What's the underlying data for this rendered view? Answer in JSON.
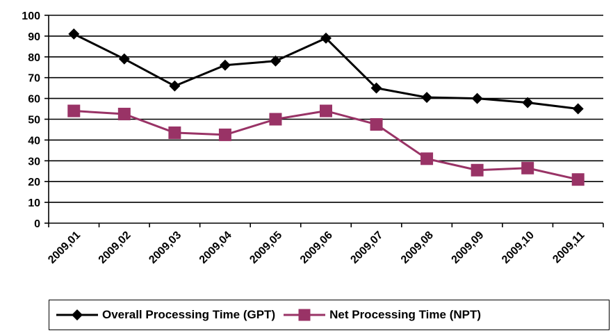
{
  "chart_data": {
    "type": "line",
    "categories": [
      "2009,01",
      "2009,02",
      "2009,03",
      "2009,04",
      "2009,05",
      "2009,06",
      "2009,07",
      "2009,08",
      "2009,09",
      "2009,10",
      "2009,11"
    ],
    "series": [
      {
        "name": "Overall Processing Time (GPT)",
        "color": "#000000",
        "marker": "diamond",
        "values": [
          91,
          79,
          66,
          76,
          78,
          89,
          65,
          60.5,
          60,
          58,
          55
        ]
      },
      {
        "name": "Net Processing Time (NPT)",
        "color": "#993366",
        "marker": "square",
        "values": [
          54,
          52.5,
          43.5,
          42.5,
          50,
          54,
          47.5,
          31,
          25.5,
          26.5,
          21
        ]
      }
    ],
    "ylim": [
      0,
      100
    ],
    "yticks": [
      0,
      10,
      20,
      30,
      40,
      50,
      60,
      70,
      80,
      90,
      100
    ],
    "grid": true,
    "legend_position": "bottom"
  }
}
